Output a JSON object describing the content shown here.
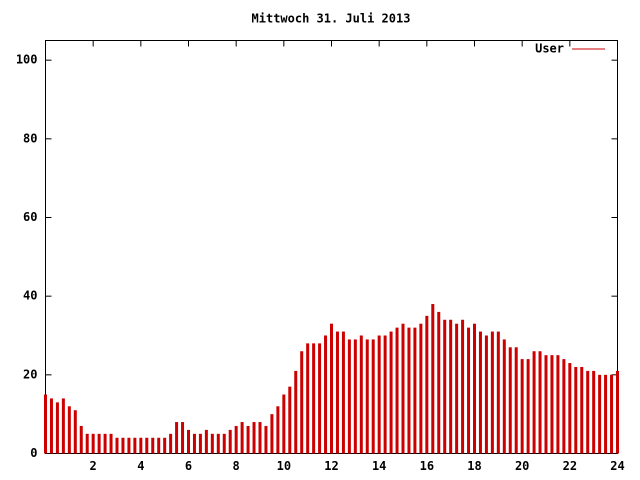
{
  "chart_data": {
    "type": "impulse",
    "title": "Mittwoch 31. Juli 2013",
    "x": [
      0,
      0.25,
      0.5,
      0.75,
      1,
      1.25,
      1.5,
      1.75,
      2,
      2.25,
      2.5,
      2.75,
      3,
      3.25,
      3.5,
      3.75,
      4,
      4.25,
      4.5,
      4.75,
      5,
      5.25,
      5.5,
      5.75,
      6,
      6.25,
      6.5,
      6.75,
      7,
      7.25,
      7.5,
      7.75,
      8,
      8.25,
      8.5,
      8.75,
      9,
      9.25,
      9.5,
      9.75,
      10,
      10.25,
      10.5,
      10.75,
      11,
      11.25,
      11.5,
      11.75,
      12,
      12.25,
      12.5,
      12.75,
      13,
      13.25,
      13.5,
      13.75,
      14,
      14.25,
      14.5,
      14.75,
      15,
      15.25,
      15.5,
      15.75,
      16,
      16.25,
      16.5,
      16.75,
      17,
      17.25,
      17.5,
      17.75,
      18,
      18.25,
      18.5,
      18.75,
      19,
      19.25,
      19.5,
      19.75,
      20,
      20.25,
      20.5,
      20.75,
      21,
      21.25,
      21.5,
      21.75,
      22,
      22.25,
      22.5,
      22.75,
      23,
      23.25,
      23.5,
      23.75,
      24
    ],
    "series": [
      {
        "name": "User",
        "color": "#cc0000",
        "values": [
          15,
          14,
          13,
          14,
          12,
          11,
          7,
          5,
          5,
          5,
          5,
          5,
          4,
          4,
          4,
          4,
          4,
          4,
          4,
          4,
          4,
          5,
          8,
          8,
          6,
          5,
          5,
          6,
          5,
          5,
          5,
          6,
          7,
          8,
          7,
          8,
          8,
          7,
          10,
          12,
          15,
          17,
          21,
          26,
          28,
          28,
          28,
          30,
          33,
          31,
          31,
          29,
          29,
          30,
          29,
          29,
          30,
          30,
          31,
          32,
          33,
          32,
          32,
          33,
          35,
          38,
          36,
          34,
          34,
          33,
          34,
          32,
          33,
          31,
          30,
          31,
          31,
          29,
          27,
          27,
          24,
          24,
          26,
          26,
          25,
          25,
          25,
          24,
          23,
          22,
          22,
          21,
          21,
          20,
          20,
          20,
          21
        ]
      }
    ],
    "xlim": [
      0,
      24
    ],
    "xticks": [
      2,
      4,
      6,
      8,
      10,
      12,
      14,
      16,
      18,
      20,
      22,
      24
    ],
    "ylim": [
      0,
      105
    ],
    "yticks": [
      0,
      20,
      40,
      60,
      80,
      100
    ]
  }
}
